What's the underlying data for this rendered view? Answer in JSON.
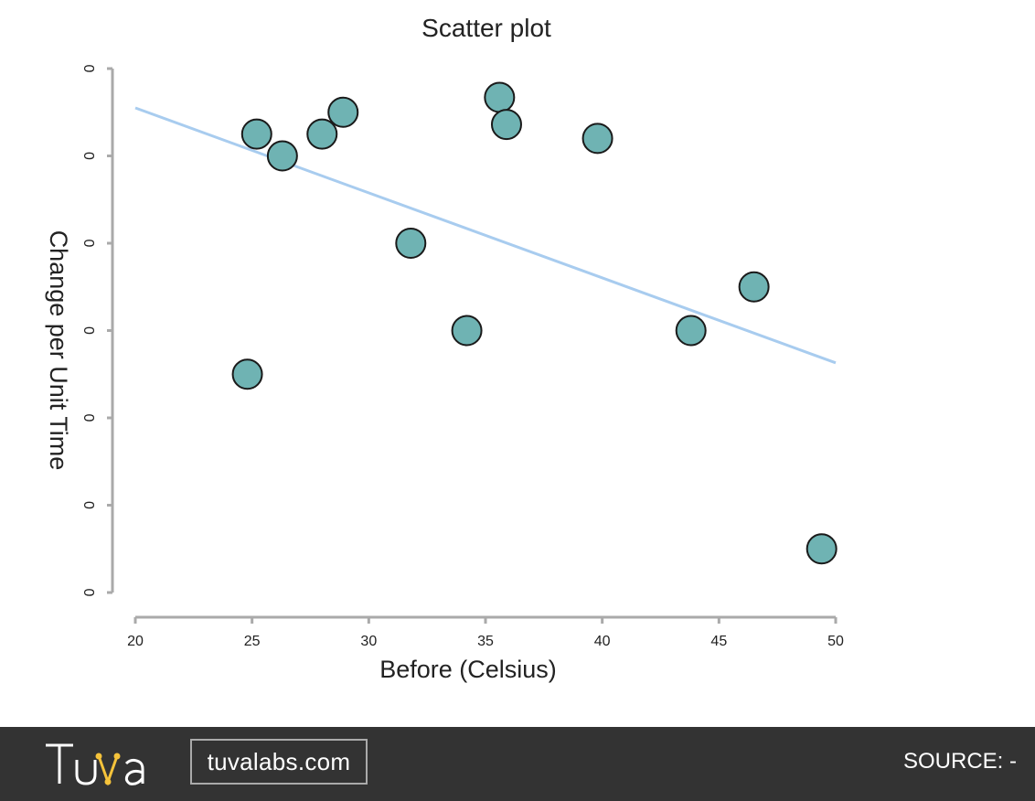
{
  "chart_data": {
    "type": "scatter",
    "title": "Scatter plot",
    "xlabel": "Before (Celsius)",
    "ylabel": "Change per Unit Time",
    "xlim": [
      20,
      50
    ],
    "ylim": [
      0,
      6
    ],
    "x_ticks": [
      "20",
      "25",
      "30",
      "35",
      "40",
      "45",
      "50"
    ],
    "y_ticks": [
      "0",
      "0",
      "0",
      "0",
      "0",
      "0",
      "0"
    ],
    "grid": false,
    "points": [
      {
        "x": 25.2,
        "y": 5.25
      },
      {
        "x": 26.3,
        "y": 5.0
      },
      {
        "x": 28.0,
        "y": 5.25
      },
      {
        "x": 28.9,
        "y": 5.5
      },
      {
        "x": 35.6,
        "y": 5.67
      },
      {
        "x": 35.9,
        "y": 5.36
      },
      {
        "x": 39.8,
        "y": 5.2
      },
      {
        "x": 31.8,
        "y": 4.0
      },
      {
        "x": 34.2,
        "y": 3.0
      },
      {
        "x": 24.8,
        "y": 2.5
      },
      {
        "x": 43.8,
        "y": 3.0
      },
      {
        "x": 46.5,
        "y": 3.5
      },
      {
        "x": 49.4,
        "y": 0.5
      }
    ],
    "trendline": {
      "x": [
        20,
        50
      ],
      "y": [
        5.55,
        2.63
      ]
    },
    "colors": {
      "point_fill": "#6fb3b3",
      "trendline": "#a8ccef"
    }
  },
  "footer": {
    "logo_text": "Tuva",
    "website": "tuvalabs.com",
    "source": "SOURCE: -",
    "logo_accent": "#f5c33b"
  }
}
